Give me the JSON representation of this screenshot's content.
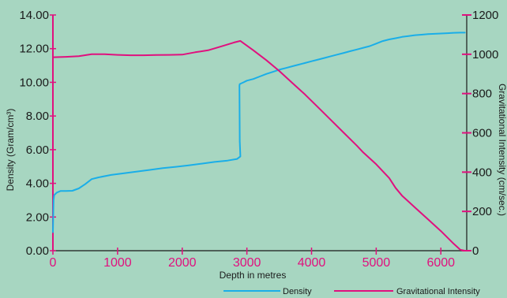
{
  "chart_data": {
    "type": "line",
    "title": "",
    "xlabel": "Depth in metres",
    "ylabel_left": "Density (Gram/cm³)",
    "ylabel_right": "Gravitational Intensity (cm/sec.)",
    "x_ticks": [
      "0",
      "1000",
      "2000",
      "3000",
      "4000",
      "5000",
      "6000"
    ],
    "y_left_ticks": [
      "0.00",
      "2.00",
      "4.00",
      "6.00",
      "8.00",
      "10.00",
      "12.00",
      "14.00"
    ],
    "y_right_ticks": [
      "0",
      "200",
      "400",
      "600",
      "800",
      "1000",
      "1200"
    ],
    "xlim": [
      0,
      6400
    ],
    "ylim_left": [
      0,
      14
    ],
    "ylim_right": [
      0,
      1200
    ],
    "legend_position": "bottom-right",
    "series": [
      {
        "name": "Density",
        "axis": "left",
        "color": "#1aaee8",
        "x": [
          0,
          10,
          20,
          60,
          120,
          200,
          300,
          400,
          500,
          600,
          700,
          900,
          1100,
          1300,
          1500,
          1700,
          1900,
          2100,
          2300,
          2500,
          2700,
          2850,
          2900,
          2890,
          2885,
          2890,
          2950,
          3000,
          3100,
          3200,
          3300,
          3400,
          3500,
          3600,
          3700,
          3800,
          3900,
          4000,
          4100,
          4200,
          4300,
          4400,
          4500,
          4600,
          4700,
          4800,
          4900,
          5000,
          5100,
          5200,
          5300,
          5400,
          5500,
          5600,
          5700,
          5800,
          5900,
          6000,
          6100,
          6200,
          6300,
          6371
        ],
        "y": [
          1.1,
          3.0,
          3.3,
          3.45,
          3.55,
          3.55,
          3.56,
          3.7,
          3.95,
          4.25,
          4.35,
          4.5,
          4.6,
          4.7,
          4.8,
          4.9,
          4.98,
          5.07,
          5.17,
          5.27,
          5.35,
          5.45,
          5.6,
          6.5,
          9.8,
          9.9,
          10.0,
          10.1,
          10.2,
          10.35,
          10.5,
          10.62,
          10.75,
          10.85,
          10.95,
          11.05,
          11.15,
          11.25,
          11.35,
          11.45,
          11.55,
          11.65,
          11.75,
          11.85,
          11.95,
          12.05,
          12.15,
          12.3,
          12.45,
          12.55,
          12.62,
          12.7,
          12.75,
          12.8,
          12.83,
          12.86,
          12.88,
          12.9,
          12.92,
          12.94,
          12.95,
          12.95
        ]
      },
      {
        "name": "Gravitational Intensity",
        "axis": "right",
        "color": "#e0107e",
        "x": [
          0,
          200,
          400,
          600,
          800,
          1000,
          1200,
          1400,
          1600,
          1800,
          2000,
          2200,
          2400,
          2600,
          2800,
          2900,
          3100,
          3300,
          3500,
          3700,
          3900,
          4100,
          4300,
          4500,
          4700,
          4800,
          5000,
          5200,
          5300,
          5400,
          5600,
          5800,
          6000,
          6200,
          6300,
          6371
        ],
        "y": [
          985,
          987,
          990,
          1000,
          1000,
          997,
          995,
          995,
          996,
          997,
          998,
          1010,
          1020,
          1040,
          1060,
          1068,
          1020,
          970,
          915,
          855,
          795,
          730,
          665,
          600,
          535,
          500,
          440,
          370,
          320,
          280,
          220,
          160,
          100,
          35,
          5,
          0
        ]
      }
    ]
  }
}
